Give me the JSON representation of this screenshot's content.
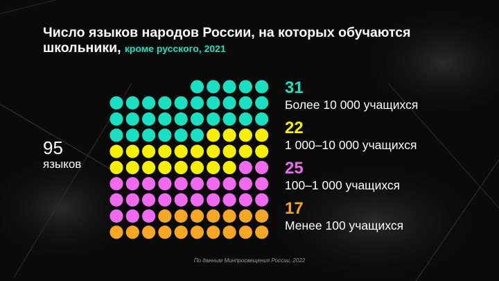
{
  "title": {
    "main": "Число языков народов России, на которых обучаются школьники,",
    "sub": "кроме русского, 2021"
  },
  "total": {
    "value": "95",
    "unit": "языков"
  },
  "source": "По данным Минпросвещения России, 2022",
  "colors": {
    "background": "#0a0a0a",
    "teal": "#19e0c0",
    "yellow": "#f5f000",
    "magenta": "#f06af0",
    "orange": "#f5a623"
  },
  "chart_data": {
    "type": "waffle",
    "title": "Число языков народов России, на которых обучаются школьники, кроме русского, 2021",
    "total": 95,
    "categories": [
      "Более 10 000 учащихся",
      "1 000–10 000 учащихся",
      "100–1 000 учащихся",
      "Менее 100 учащихся"
    ],
    "values": [
      31,
      22,
      25,
      17
    ],
    "colors": [
      "#19e0c0",
      "#f5f000",
      "#f06af0",
      "#f5a623"
    ],
    "grid": {
      "columns": 10,
      "rows": 10,
      "fill_order": "bottom-to-top, right-to-left"
    }
  },
  "legend": [
    {
      "value": "31",
      "label": "Более 10 000 учащихся",
      "color": "#19e0c0"
    },
    {
      "value": "22",
      "label": "1 000–10 000 учащихся",
      "color": "#f5f000"
    },
    {
      "value": "25",
      "label": "100–1 000 учащихся",
      "color": "#f06af0"
    },
    {
      "value": "17",
      "label": "Менее 100 учащихся",
      "color": "#f5a623"
    }
  ]
}
